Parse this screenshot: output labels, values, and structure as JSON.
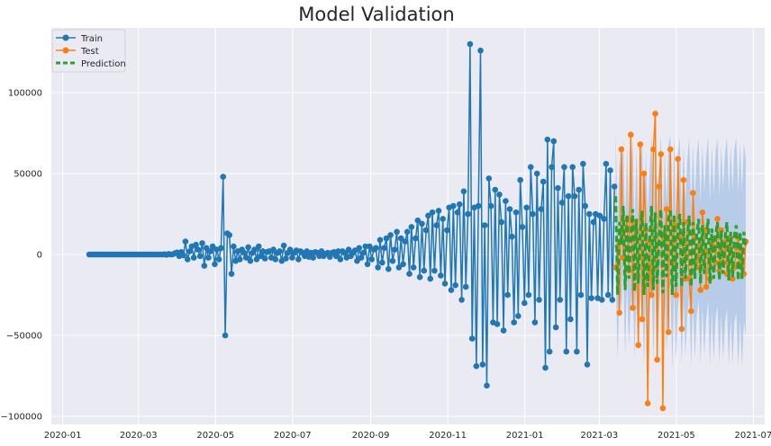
{
  "chart_data": {
    "type": "line",
    "title": "Model Validation",
    "xlabel": "",
    "ylabel": "",
    "x_range": [
      "2019-12-23",
      "2021-07-10"
    ],
    "ylim": [
      -105000,
      140000
    ],
    "grid": true,
    "legend": {
      "placement": "top-left",
      "entries": [
        "Train",
        "Test",
        "Prediction"
      ]
    },
    "x_ticks": [
      "2020-01",
      "2020-03",
      "2020-05",
      "2020-07",
      "2020-09",
      "2020-11",
      "2021-01",
      "2021-03",
      "2021-05",
      "2021-07"
    ],
    "y_ticks": [
      -100000,
      -50000,
      0,
      50000,
      100000
    ],
    "y_tick_labels": [
      "−100000",
      "−50000",
      "0",
      "50000",
      "100000"
    ],
    "colors": {
      "train": "#1f77b4",
      "test": "#ff7f0e",
      "prediction": "#2ca02c",
      "confidence_band": "#aec7e8",
      "plot_bg": "#eaeaf2",
      "grid": "#ffffff"
    },
    "series": [
      {
        "name": "Train",
        "x_start": "2020-01-22",
        "x_end": "2021-03-13",
        "values": [
          0,
          0,
          0,
          0,
          0,
          0,
          0,
          0,
          0,
          0,
          0,
          0,
          0,
          0,
          0,
          0,
          0,
          0,
          0,
          0,
          0,
          0,
          0,
          0,
          0,
          0,
          0,
          0,
          0,
          0,
          0,
          0,
          0,
          0,
          0,
          0,
          100,
          -200,
          300,
          0,
          200,
          800,
          1200,
          -1000,
          1500,
          -500,
          8000,
          -3000,
          2000,
          5000,
          -2000,
          6000,
          3000,
          -1000,
          7000,
          -7000,
          4000,
          -2000,
          2000,
          5000,
          -6000,
          3000,
          -3000,
          4000,
          48000,
          -50000,
          13000,
          12000,
          -12000,
          5000,
          -4000,
          2000,
          -3000,
          3000,
          1000,
          -2000,
          4500,
          -4000,
          1000,
          3000,
          -3000,
          5000,
          -1000,
          2000,
          -2500,
          1500,
          2000,
          -2000,
          3000,
          -3000,
          1000,
          2000,
          -4000,
          5500,
          -2500,
          1000,
          3000,
          -2000,
          1000,
          2500,
          -3000,
          2000,
          1000,
          -1000,
          2000,
          -1500,
          1000,
          -2000,
          1500,
          1000,
          -1000,
          2000,
          -1000,
          500,
          1000,
          -1500,
          1000,
          1500,
          -1000,
          2000,
          -3000,
          2000,
          1000,
          -2000,
          3000,
          -1000,
          1000,
          2500,
          -4000,
          4000,
          -2000,
          1000,
          5000,
          -6000,
          5000,
          -3000,
          3000,
          4000,
          -8000,
          9000,
          -5000,
          4000,
          10000,
          -9000,
          12000,
          -4000,
          3000,
          14000,
          -8000,
          10000,
          -6000,
          8000,
          14000,
          -12000,
          17000,
          -8000,
          10000,
          21000,
          -14000,
          19000,
          -10000,
          15000,
          24000,
          -15000,
          26000,
          -10000,
          18000,
          27000,
          -13000,
          22000,
          -18000,
          15000,
          29000,
          -22000,
          30000,
          -19000,
          26000,
          31000,
          -28000,
          39000,
          -20000,
          25000,
          130000,
          -52000,
          29000,
          -69000,
          30000,
          126000,
          -68000,
          18000,
          -81000,
          47000,
          30000,
          -42000,
          40000,
          -43000,
          37000,
          20000,
          -47000,
          33000,
          -25000,
          28000,
          11000,
          -42000,
          26000,
          -38000,
          46000,
          17000,
          -30000,
          29000,
          -25000,
          54000,
          25000,
          -42000,
          50000,
          -28000,
          28000,
          45000,
          -70000,
          71000,
          -60000,
          54000,
          70000,
          -45000,
          41000,
          -28000,
          32000,
          54000,
          -60000,
          36000,
          -40000,
          54000,
          36000,
          -60000,
          40000,
          -25000,
          56000,
          30000,
          -68000,
          25000,
          -27000,
          20000,
          25000,
          -27000,
          24000,
          -28000,
          22000,
          56000,
          -25000,
          52000,
          -28000,
          42000
        ]
      },
      {
        "name": "Test",
        "x_start": "2021-03-14",
        "x_end": "2021-06-25",
        "values": [
          -8000,
          5000,
          -36000,
          65000,
          -2000,
          15000,
          22000,
          -10000,
          74000,
          -33000,
          20000,
          10000,
          -56000,
          68000,
          -40000,
          50000,
          15000,
          -92000,
          8000,
          -25000,
          65000,
          87000,
          -65000,
          42000,
          62000,
          -95000,
          10000,
          28000,
          -48000,
          65000,
          -5000,
          18000,
          -25000,
          59000,
          10000,
          -46000,
          46000,
          -15000,
          20000,
          -15000,
          -35000,
          38000,
          10000,
          -8000,
          5000,
          -22000,
          26000,
          15000,
          -20000,
          2000,
          -15000,
          6000,
          10000,
          -5000,
          22000,
          -10000,
          15000,
          -5000,
          8000,
          -12000,
          5000,
          10000,
          -15000,
          -8000,
          4000,
          10000,
          -5000,
          3000,
          -12000,
          8000
        ]
      },
      {
        "name": "Prediction",
        "x_start": "2021-03-14",
        "x_end": "2021-06-25",
        "values": [
          36000,
          -25000,
          20000,
          6000,
          30000,
          -22000,
          25000,
          -15000,
          10000,
          28000,
          -23000,
          22000,
          -18000,
          12000,
          27000,
          -25000,
          20000,
          -20000,
          8000,
          30000,
          -22000,
          26000,
          -18000,
          10000,
          28000,
          -24000,
          18000,
          -14000,
          22000,
          27000,
          -25000,
          25000,
          -20000,
          15000,
          25000,
          -20000,
          20000,
          -15000,
          10000,
          24000,
          -20000,
          20000,
          -15000,
          12000,
          22000,
          -18000,
          18000,
          -12000,
          10000,
          22000,
          -18000,
          16000,
          -15000,
          12000,
          20000,
          -16000,
          15000,
          -12000,
          10000,
          20000,
          -16000,
          14000,
          -14000,
          12000,
          18000,
          -16000,
          14000,
          -15000,
          14000,
          4000
        ]
      }
    ],
    "confidence_band": {
      "x_start": "2021-03-14",
      "x_end": "2021-06-25",
      "half_width": 40000,
      "half_width_end": 55000
    }
  }
}
